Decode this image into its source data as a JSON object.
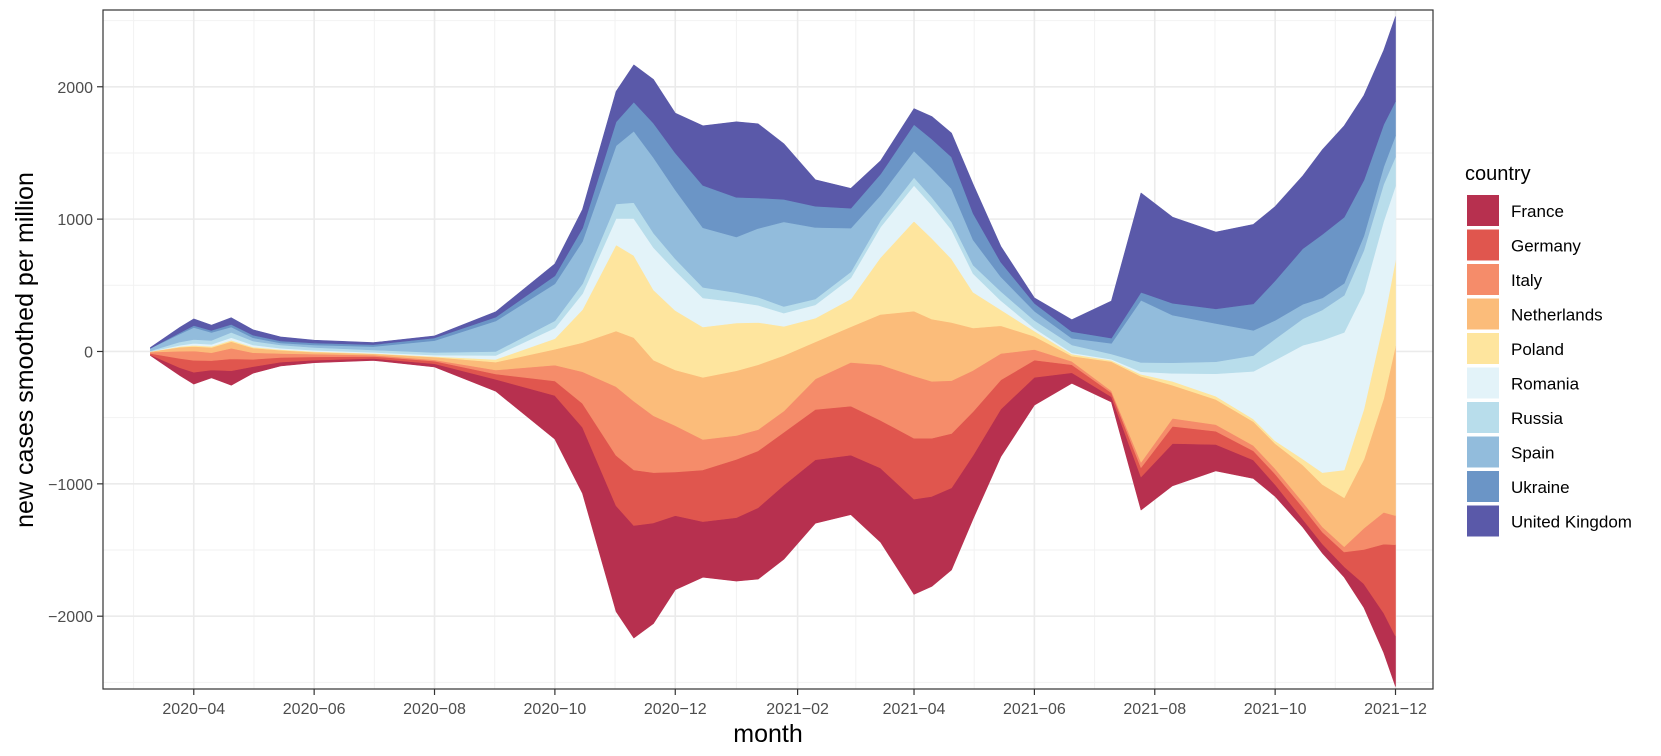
{
  "chart_data": {
    "type": "area",
    "subtype": "streamgraph",
    "title": "",
    "xlabel": "month",
    "ylabel": "new cases smoothed per million",
    "xlim": [
      "2020-02-15",
      "2021-12-20"
    ],
    "ylim": [
      -2550,
      2580
    ],
    "yticks": [
      -2000,
      -1000,
      0,
      1000,
      2000
    ],
    "ytick_labels": [
      "−2000",
      "−1000",
      "0",
      "1000",
      "2000"
    ],
    "xticks": [
      "2020-04-01",
      "2020-06-01",
      "2020-08-01",
      "2020-10-01",
      "2020-12-01",
      "2021-02-01",
      "2021-04-01",
      "2021-06-01",
      "2021-08-01",
      "2021-10-01",
      "2021-12-01"
    ],
    "xtick_labels": [
      "2020−04",
      "2020−06",
      "2020−08",
      "2020−10",
      "2020−12",
      "2021−02",
      "2021−04",
      "2021−06",
      "2021−08",
      "2021−10",
      "2021−12"
    ],
    "legend_title": "country",
    "legend_position": "right",
    "grid": true,
    "x": [
      "2020-03-10",
      "2020-03-25",
      "2020-04-01",
      "2020-04-10",
      "2020-04-20",
      "2020-05-01",
      "2020-05-15",
      "2020-06-01",
      "2020-07-01",
      "2020-08-01",
      "2020-09-01",
      "2020-10-01",
      "2020-10-15",
      "2020-11-01",
      "2020-11-10",
      "2020-11-20",
      "2020-12-01",
      "2020-12-15",
      "2021-01-01",
      "2021-01-12",
      "2021-01-25",
      "2021-02-10",
      "2021-02-28",
      "2021-03-15",
      "2021-04-01",
      "2021-04-10",
      "2021-04-20",
      "2021-05-01",
      "2021-05-15",
      "2021-06-01",
      "2021-06-20",
      "2021-07-10",
      "2021-07-25",
      "2021-08-10",
      "2021-09-01",
      "2021-09-20",
      "2021-10-01",
      "2021-10-15",
      "2021-10-25",
      "2021-11-05",
      "2021-11-15",
      "2021-11-25",
      "2021-12-01"
    ],
    "series": [
      {
        "name": "France",
        "color": "#B7304F",
        "values": [
          5,
          60,
          90,
          60,
          110,
          50,
          30,
          20,
          15,
          25,
          90,
          330,
          500,
          800,
          850,
          760,
          560,
          420,
          480,
          540,
          560,
          480,
          450,
          560,
          720,
          680,
          620,
          480,
          360,
          210,
          80,
          40,
          250,
          320,
          200,
          140,
          90,
          60,
          70,
          80,
          180,
          300,
          380
        ]
      },
      {
        "name": "Germany",
        "color": "#E0564E",
        "values": [
          10,
          70,
          90,
          70,
          90,
          55,
          35,
          25,
          15,
          20,
          40,
          110,
          180,
          380,
          420,
          380,
          330,
          390,
          440,
          430,
          400,
          380,
          370,
          360,
          460,
          440,
          410,
          330,
          220,
          130,
          60,
          30,
          70,
          130,
          100,
          70,
          80,
          90,
          90,
          110,
          260,
          520,
          690
        ]
      },
      {
        "name": "Italy",
        "color": "#F58C6A",
        "values": [
          10,
          55,
          70,
          60,
          80,
          50,
          30,
          20,
          10,
          10,
          30,
          120,
          240,
          520,
          520,
          430,
          350,
          230,
          180,
          160,
          160,
          230,
          330,
          420,
          470,
          430,
          400,
          310,
          200,
          80,
          25,
          15,
          40,
          60,
          50,
          40,
          40,
          40,
          40,
          40,
          160,
          240,
          220
        ]
      },
      {
        "name": "Netherlands",
        "color": "#FBBC7A",
        "values": [
          5,
          30,
          35,
          40,
          50,
          35,
          25,
          15,
          10,
          20,
          60,
          120,
          220,
          420,
          480,
          420,
          420,
          470,
          490,
          490,
          420,
          280,
          270,
          380,
          490,
          470,
          440,
          320,
          210,
          100,
          40,
          220,
          650,
          250,
          190,
          180,
          190,
          280,
          320,
          370,
          520,
          860,
          1280
        ]
      },
      {
        "name": "Poland",
        "color": "#FEE59E",
        "values": [
          0,
          5,
          8,
          8,
          10,
          8,
          5,
          5,
          3,
          5,
          20,
          80,
          250,
          650,
          620,
          530,
          450,
          380,
          360,
          320,
          220,
          180,
          210,
          430,
          680,
          610,
          480,
          270,
          120,
          40,
          15,
          10,
          15,
          30,
          25,
          20,
          20,
          45,
          90,
          210,
          380,
          580,
          650
        ]
      },
      {
        "name": "Romania",
        "color": "#E3F3F9",
        "values": [
          0,
          10,
          15,
          15,
          20,
          15,
          10,
          10,
          8,
          10,
          30,
          80,
          120,
          200,
          280,
          320,
          300,
          220,
          160,
          130,
          100,
          100,
          160,
          230,
          270,
          250,
          220,
          140,
          70,
          20,
          10,
          8,
          20,
          60,
          170,
          360,
          610,
          860,
          1000,
          1040,
          880,
          760,
          560
        ]
      },
      {
        "name": "Russia",
        "color": "#B8DDEB",
        "values": [
          5,
          25,
          30,
          30,
          40,
          30,
          25,
          20,
          18,
          20,
          30,
          55,
          75,
          110,
          120,
          110,
          90,
          80,
          70,
          60,
          50,
          45,
          45,
          50,
          60,
          60,
          60,
          65,
          70,
          60,
          60,
          40,
          70,
          80,
          90,
          120,
          160,
          200,
          230,
          280,
          320,
          280,
          220
        ]
      },
      {
        "name": "Spain",
        "color": "#92BCDC",
        "values": [
          20,
          60,
          90,
          60,
          40,
          25,
          15,
          20,
          25,
          90,
          230,
          280,
          320,
          440,
          540,
          570,
          520,
          450,
          420,
          520,
          640,
          540,
          330,
          190,
          200,
          220,
          250,
          190,
          110,
          70,
          50,
          80,
          470,
          360,
          290,
          190,
          140,
          110,
          90,
          90,
          110,
          130,
          160
        ]
      },
      {
        "name": "Ukraine",
        "color": "#6B95C6",
        "values": [
          0,
          10,
          15,
          15,
          20,
          20,
          15,
          15,
          15,
          20,
          30,
          60,
          100,
          180,
          220,
          260,
          280,
          320,
          300,
          230,
          170,
          160,
          150,
          160,
          200,
          220,
          240,
          200,
          110,
          60,
          50,
          40,
          60,
          90,
          110,
          200,
          300,
          420,
          480,
          500,
          420,
          320,
          260
        ]
      },
      {
        "name": "United Kingdom",
        "color": "#5A59A9",
        "values": [
          5,
          40,
          50,
          40,
          50,
          40,
          30,
          20,
          15,
          15,
          40,
          90,
          140,
          230,
          280,
          330,
          300,
          450,
          570,
          560,
          420,
          200,
          150,
          100,
          120,
          170,
          180,
          220,
          120,
          40,
          90,
          280,
          750,
          650,
          580,
          600,
          560,
          550,
          640,
          690,
          640,
          560,
          640
        ]
      }
    ]
  }
}
